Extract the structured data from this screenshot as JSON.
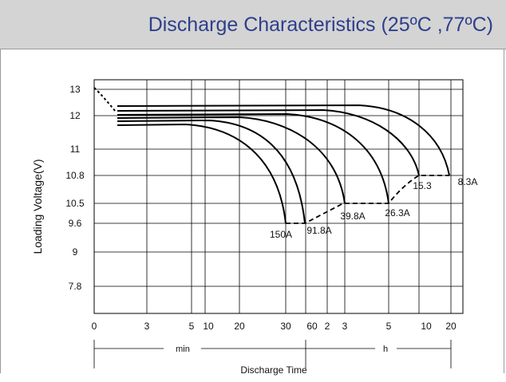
{
  "chart_data": {
    "type": "line",
    "title": "Discharge Characteristics (25ºC ,77ºC)",
    "ylabel": "Loading  Voltage(V)",
    "xlabel": "Discharge Time",
    "y_ticks": [
      "13",
      "12",
      "11",
      "10.8",
      "10.5",
      "9.6",
      "9",
      "7.8"
    ],
    "x_ticks": [
      "0",
      "3",
      "5",
      "10",
      "20",
      "30",
      "60",
      "2",
      "3",
      "5",
      "10",
      "20"
    ],
    "x_units": [
      "min",
      "h"
    ],
    "series": [
      {
        "name": "150A",
        "points": [
          [
            0.03,
            12.0
          ],
          [
            1,
            11.95
          ],
          [
            3,
            11.85
          ],
          [
            5,
            11.75
          ],
          [
            7,
            11.62
          ],
          [
            9,
            11.45
          ],
          [
            11,
            11.22
          ],
          [
            13,
            10.9
          ],
          [
            15,
            10.45
          ],
          [
            17,
            9.95
          ],
          [
            19,
            9.6
          ]
        ]
      },
      {
        "name": "91.8A",
        "points": [
          [
            0.03,
            12.05
          ],
          [
            1,
            12.02
          ],
          [
            3,
            11.95
          ],
          [
            6,
            11.85
          ],
          [
            9,
            11.72
          ],
          [
            12,
            11.55
          ],
          [
            15,
            11.3
          ],
          [
            18,
            10.95
          ],
          [
            21,
            10.55
          ],
          [
            24,
            10.0
          ],
          [
            26,
            9.6
          ]
        ]
      },
      {
        "name": "39.8A",
        "points": [
          [
            0.03,
            12.1
          ],
          [
            2,
            12.08
          ],
          [
            6,
            12.05
          ],
          [
            12,
            11.98
          ],
          [
            18,
            11.88
          ],
          [
            24,
            11.72
          ],
          [
            30,
            11.5
          ],
          [
            36,
            11.2
          ],
          [
            42,
            10.85
          ],
          [
            48,
            10.45
          ],
          [
            54,
            10.0
          ],
          [
            60,
            9.6
          ]
        ]
      },
      {
        "name": "26.3A",
        "points": [
          [
            0.05,
            12.15
          ],
          [
            0.5,
            12.12
          ],
          [
            1,
            12.08
          ],
          [
            1.5,
            11.98
          ],
          [
            2,
            11.82
          ],
          [
            2.5,
            11.55
          ],
          [
            3,
            11.2
          ],
          [
            3.5,
            10.8
          ],
          [
            3.9,
            10.5
          ]
        ]
      },
      {
        "name": "15.3",
        "points": [
          [
            0.05,
            12.2
          ],
          [
            1,
            12.18
          ],
          [
            2,
            12.12
          ],
          [
            3,
            12.02
          ],
          [
            4,
            11.88
          ],
          [
            5,
            11.7
          ],
          [
            6,
            11.45
          ],
          [
            7,
            11.2
          ],
          [
            7.6,
            10.95
          ],
          [
            8,
            10.8
          ]
        ]
      },
      {
        "name": "8.3A",
        "points": [
          [
            0.05,
            12.27
          ],
          [
            2,
            12.25
          ],
          [
            4,
            12.18
          ],
          [
            6,
            12.06
          ],
          [
            8,
            11.88
          ],
          [
            10,
            11.65
          ],
          [
            12,
            11.38
          ],
          [
            14,
            11.08
          ],
          [
            15.5,
            10.85
          ],
          [
            16,
            10.8
          ]
        ]
      }
    ],
    "cutoff_line": {
      "points": [
        [
          19,
          9.6
        ],
        [
          26,
          9.6
        ],
        [
          38,
          9.8
        ],
        [
          60,
          10.5
        ],
        [
          3.9,
          10.5
        ],
        [
          6.5,
          10.7
        ],
        [
          8,
          10.8
        ],
        [
          16,
          10.8
        ]
      ]
    },
    "colors": {
      "curve": "#000000",
      "grid": "#000000",
      "title": "#2e3f8c",
      "title_bg": "#d4d4d4"
    }
  }
}
